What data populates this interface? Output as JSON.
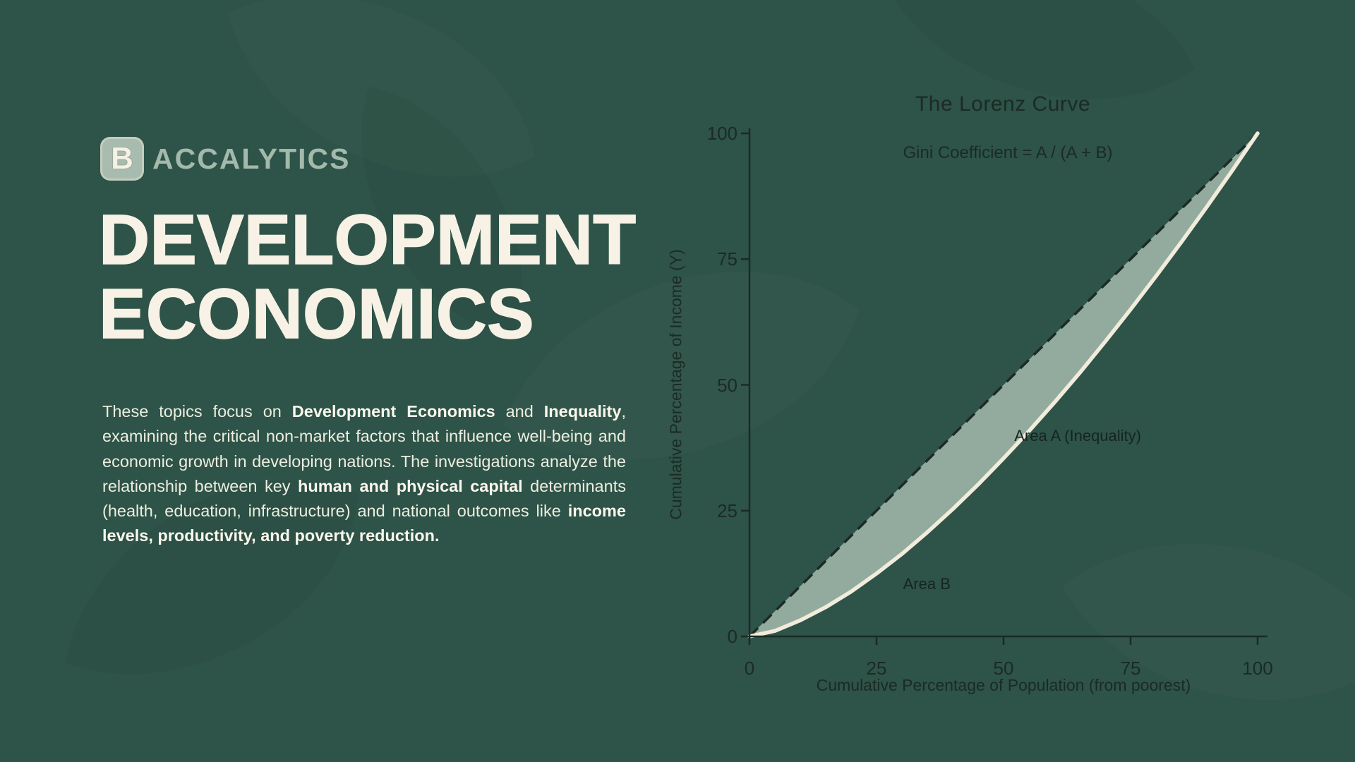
{
  "slide": {
    "background_color": "#2e5348",
    "ink_color": "#1b2b24",
    "cream_color": "#f7f2e5"
  },
  "logo": {
    "icon_letter": "B",
    "wordmark": "ACCALYTICS",
    "color": "#a2b9ab"
  },
  "heading": {
    "line1": "DEVELOPMENT",
    "line2": "ECONOMICS"
  },
  "paragraph": {
    "segments": [
      {
        "text": "These topics focus on ",
        "bold": false
      },
      {
        "text": "Development Economics",
        "bold": true
      },
      {
        "text": " and ",
        "bold": false
      },
      {
        "text": "Inequality",
        "bold": true
      },
      {
        "text": ", examining the critical non-market factors that influence well-being and economic growth in developing nations. The investigations analyze the relationship between key ",
        "bold": false
      },
      {
        "text": "human and physical capital",
        "bold": true
      },
      {
        "text": " determinants (health, education, infrastructure) and national outcomes like ",
        "bold": false
      },
      {
        "text": "income levels, productivity, and poverty reduction.",
        "bold": true
      }
    ]
  },
  "chart_data": {
    "type": "line",
    "title": "The Lorenz Curve",
    "annotation": "Gini Coefficient = A / (A + B)",
    "xlabel": "Cumulative Percentage of Population (from poorest)",
    "ylabel": "Cumulative Percentage of Income (Y)",
    "xlim": [
      0,
      100
    ],
    "ylim": [
      0,
      100
    ],
    "xticks": [
      0,
      25,
      50,
      75,
      100
    ],
    "yticks": [
      0,
      25,
      50,
      75,
      100
    ],
    "grid": false,
    "legend": "none",
    "area_fill_color": "#93ab9e",
    "series": [
      {
        "name": "Line of Equality",
        "style": "dashed",
        "color": "#1b2b24",
        "points": [
          [
            0,
            0
          ],
          [
            100,
            100
          ]
        ]
      },
      {
        "name": "Lorenz Curve",
        "style": "solid",
        "color": "#f1ecdb",
        "points": [
          [
            0,
            0
          ],
          [
            5,
            1.1
          ],
          [
            10,
            3.2
          ],
          [
            15,
            5.8
          ],
          [
            20,
            8.9
          ],
          [
            25,
            12.5
          ],
          [
            30,
            16.4
          ],
          [
            35,
            20.7
          ],
          [
            40,
            25.3
          ],
          [
            45,
            30.2
          ],
          [
            50,
            35.4
          ],
          [
            55,
            40.8
          ],
          [
            60,
            46.5
          ],
          [
            65,
            52.4
          ],
          [
            70,
            58.6
          ],
          [
            75,
            65.0
          ],
          [
            80,
            71.6
          ],
          [
            85,
            78.4
          ],
          [
            90,
            85.4
          ],
          [
            95,
            92.6
          ],
          [
            100,
            100
          ]
        ]
      }
    ],
    "plot_labels": [
      {
        "text": "Area A (Inequality)",
        "x": 64.6,
        "y": 39.8
      },
      {
        "text": "Area B",
        "x": 34.9,
        "y": 10.4
      }
    ]
  }
}
